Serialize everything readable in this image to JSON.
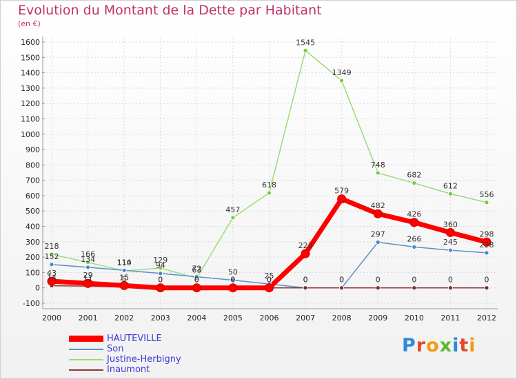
{
  "header": {
    "title": "Evolution du Montant de la Dette par Habitant",
    "unit": "(en €)"
  },
  "logo": {
    "text": "Proxiti",
    "colors": [
      "#2e8ad8",
      "#e8462d",
      "#f09b16",
      "#5db82e",
      "#2e8ad8",
      "#e8462d",
      "#f09b16"
    ]
  },
  "chart_data": {
    "type": "line",
    "categories": [
      "2000",
      "2001",
      "2002",
      "2003",
      "2004",
      "2005",
      "2006",
      "2007",
      "2008",
      "2009",
      "2010",
      "2011",
      "2012"
    ],
    "ylim": [
      -100,
      1600
    ],
    "yticks": [
      -100,
      0,
      100,
      200,
      300,
      400,
      500,
      600,
      700,
      800,
      900,
      1000,
      1100,
      1200,
      1300,
      1400,
      1500,
      1600
    ],
    "grid": true,
    "legend_position": "bottom-left",
    "series": [
      {
        "name": "HAUTEVILLE",
        "color": "#ff0000",
        "values": [
          43,
          29,
          15,
          0,
          0,
          0,
          0,
          223,
          579,
          482,
          426,
          360,
          298
        ]
      },
      {
        "name": "Son",
        "color": "#5b8fc7",
        "values": [
          152,
          134,
          114,
          94,
          72,
          50,
          25,
          0,
          0,
          297,
          266,
          245,
          228
        ]
      },
      {
        "name": "Justine-Herbigny",
        "color": "#99dd77",
        "values": [
          218,
          166,
          110,
          129,
          63,
          457,
          618,
          1545,
          1349,
          748,
          682,
          612,
          556
        ]
      },
      {
        "name": "Inaumont",
        "color": "#8b3a3a",
        "values": [
          14,
          11,
          5,
          0,
          0,
          0,
          0,
          0,
          0,
          0,
          0,
          0,
          0
        ]
      }
    ]
  }
}
